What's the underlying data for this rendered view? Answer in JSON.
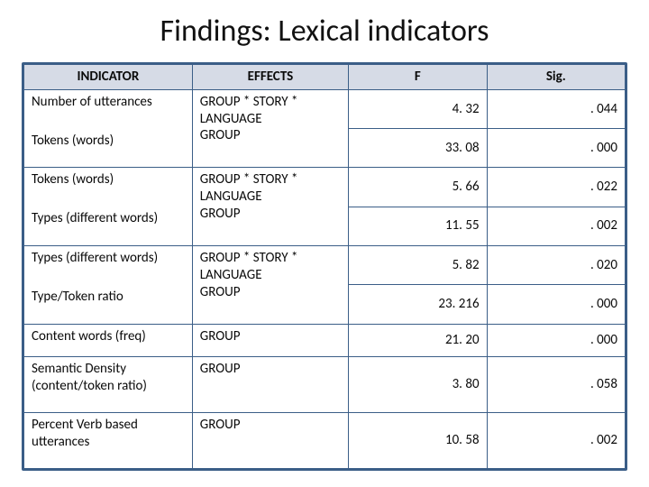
{
  "title": "Findings: Lexical indicators",
  "colors": {
    "border": "#3b5e87",
    "header_bg": "#d6dbe6",
    "text": "#0a0a0a",
    "background": "#ffffff"
  },
  "table": {
    "headers": [
      "INDICATOR",
      "EFFECTS",
      "F",
      "Sig."
    ],
    "rows": [
      {
        "indicator": "Number of utterances",
        "effects": "GROUP * STORY * LANGUAGE",
        "F": "4. 32",
        "sig": ". 044",
        "sharedEffectStart": true
      },
      {
        "indicator": "Tokens (words)",
        "effects": "GROUP",
        "F": "33. 08",
        "sig": ". 000",
        "sharedEffectEnd": true
      },
      {
        "indicator": "Tokens (words)",
        "effects": "GROUP * STORY * LANGUAGE",
        "F": "5. 66",
        "sig": ". 022",
        "sharedEffectStart": true
      },
      {
        "indicator": "Types (different words)",
        "effects": "GROUP",
        "F": "11. 55",
        "sig": ". 002",
        "sharedEffectEnd": true
      },
      {
        "indicator": "Types (different words)",
        "effects": "GROUP * STORY * LANGUAGE",
        "F": "5. 82",
        "sig": ". 020",
        "sharedEffectStart": true
      },
      {
        "indicator": "Type/Token ratio",
        "effects": "GROUP",
        "F": "23. 216",
        "sig": ". 000",
        "sharedEffectEnd": true
      },
      {
        "indicator": "Content words (freq)",
        "effects": "GROUP",
        "F": "21. 20",
        "sig": ". 000"
      },
      {
        "indicator": "Semantic Density (content/token ratio)",
        "effects": "GROUP",
        "F": "3. 80",
        "sig": ". 058"
      },
      {
        "indicator": "Percent Verb based utterances",
        "effects": "GROUP",
        "F": "10. 58",
        "sig": ". 002"
      }
    ]
  }
}
